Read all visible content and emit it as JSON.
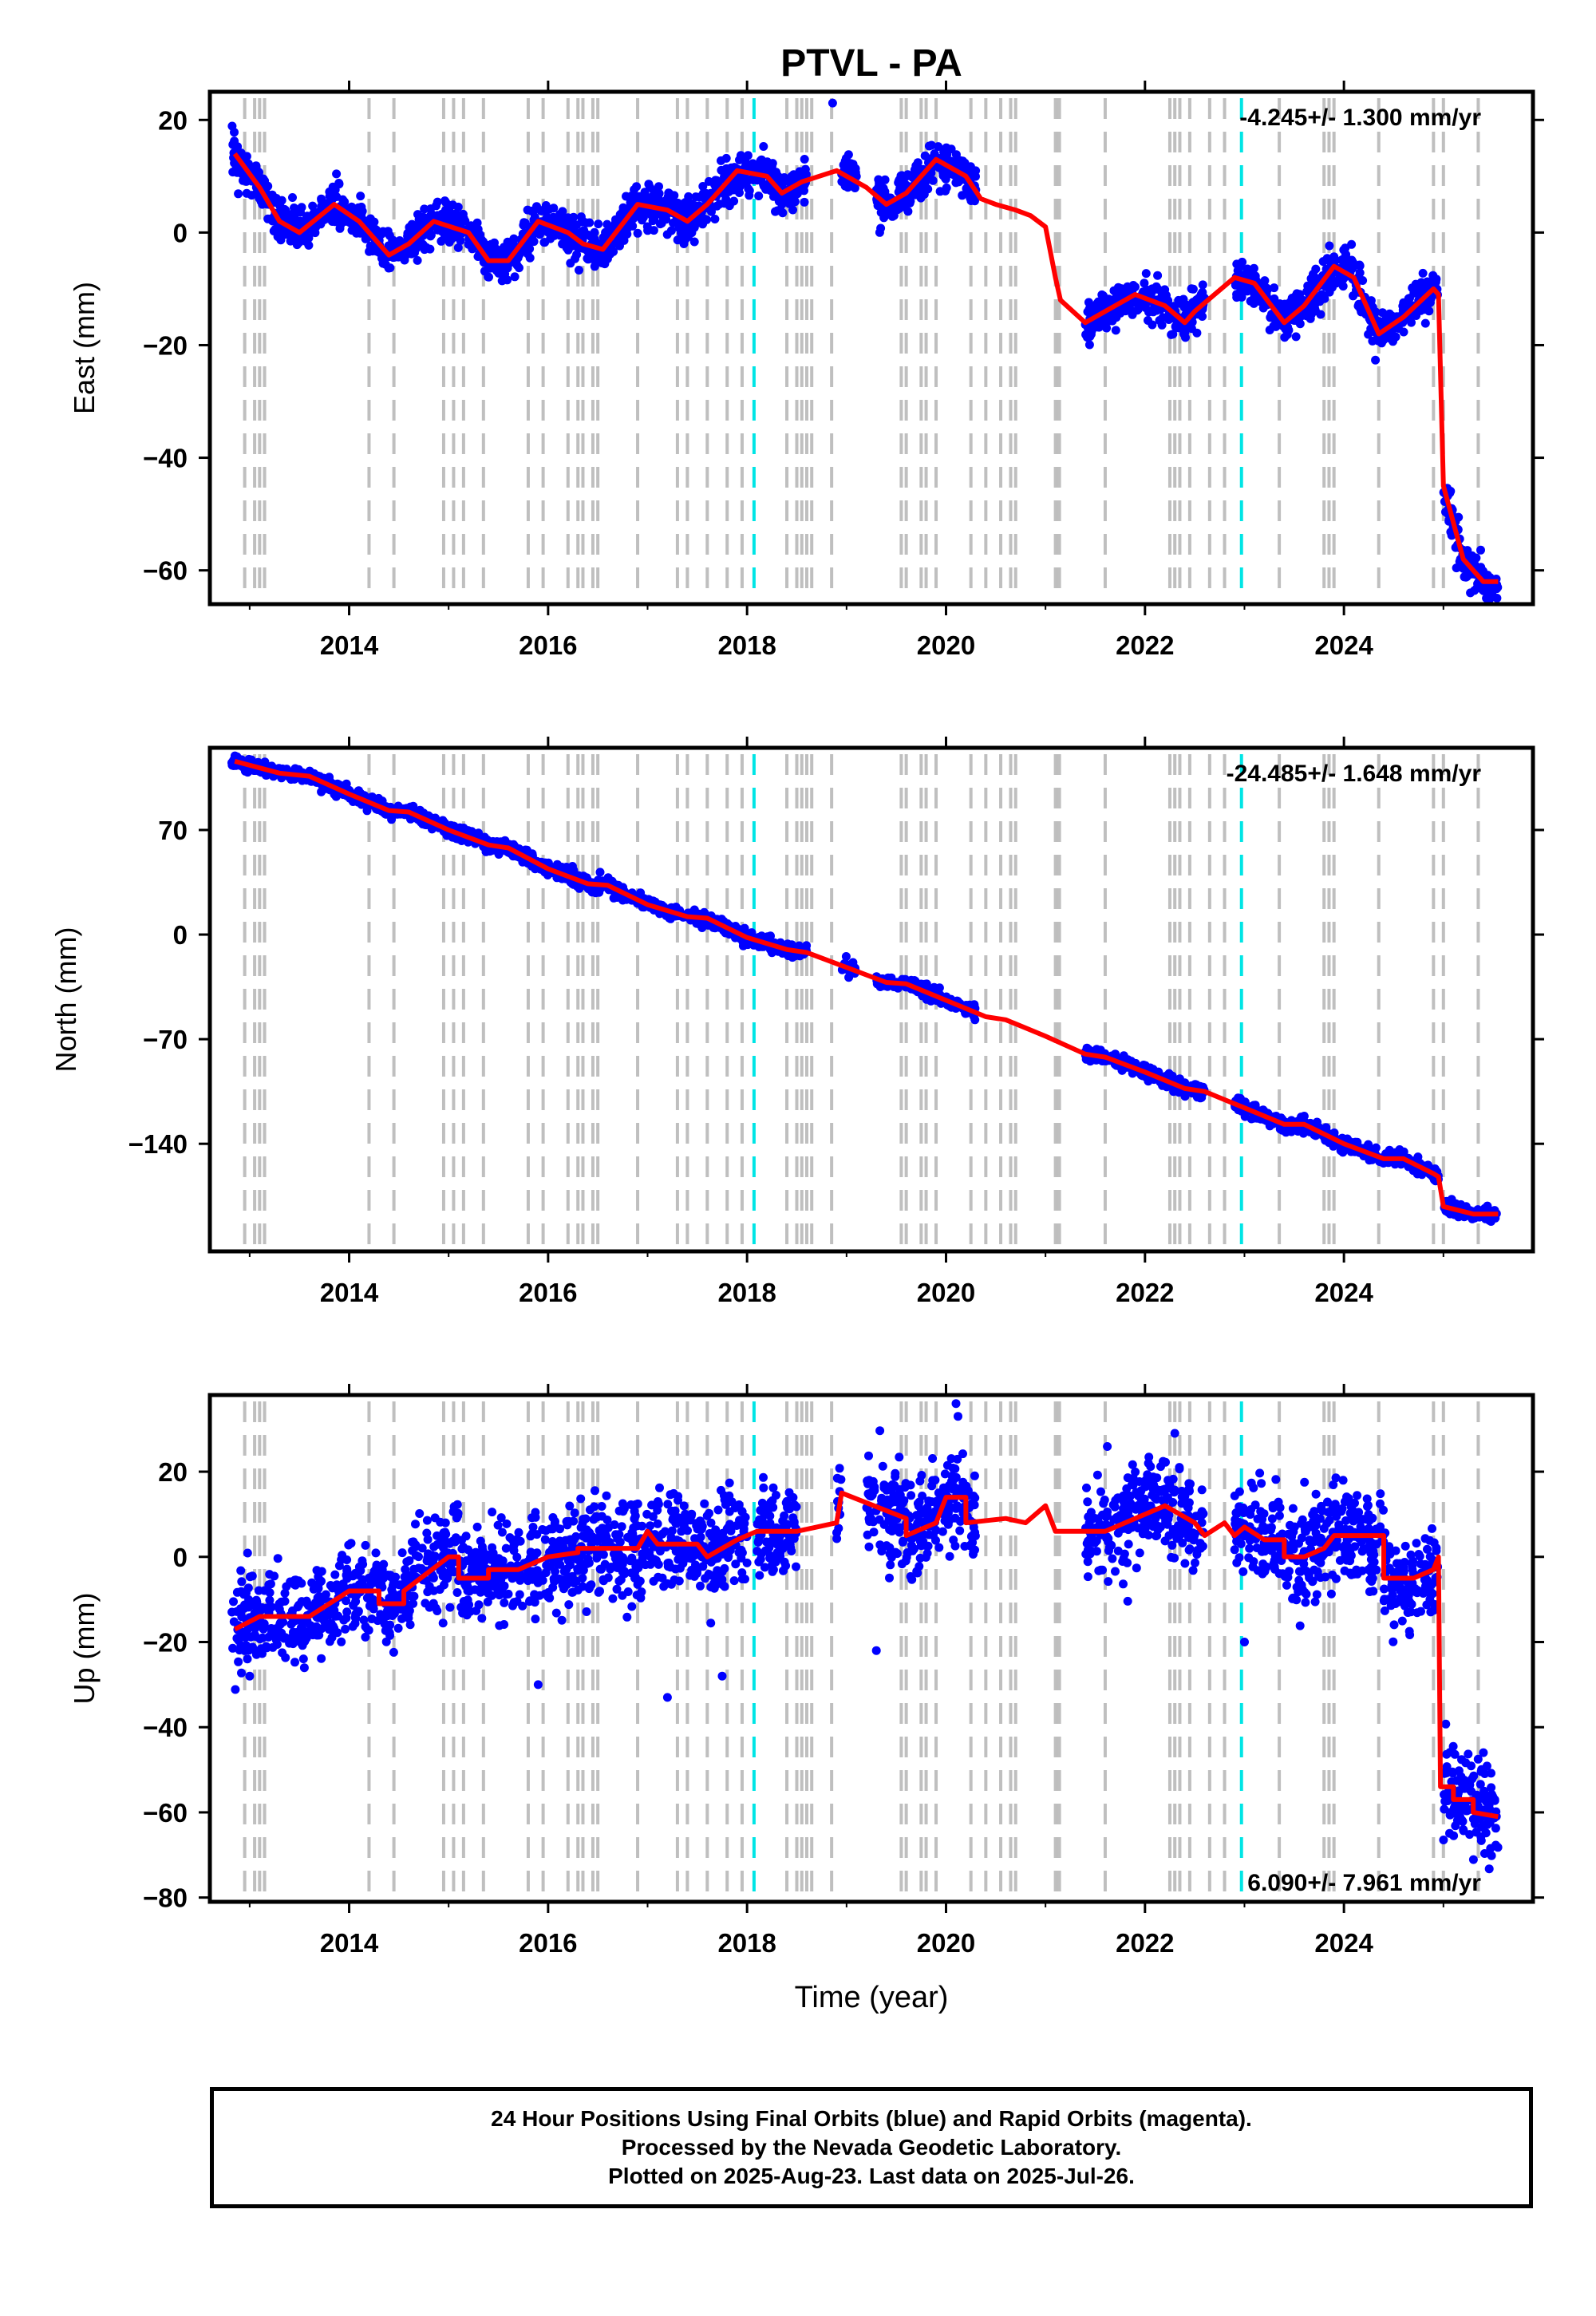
{
  "title": "PTVL - PA",
  "xlabel": "Time (year)",
  "colors": {
    "data": "#0000ff",
    "model": "#ff0000",
    "event_line": "#bfbfbf",
    "special_line": "#00e5e5",
    "frame": "#000000"
  },
  "caption": [
    "24 Hour Positions Using Final Orbits (blue) and Rapid Orbits (magenta).",
    "Processed by the Nevada Geodetic Laboratory.",
    "Plotted on 2025-Aug-23. Last data on 2025-Jul-26."
  ],
  "chart_data": [
    {
      "type": "scatter",
      "ylabel": "East (mm)",
      "rate_label": "-4.245+/- 1.300 mm/yr",
      "rate_position": "top-right",
      "xlim": [
        2012.6,
        2025.9
      ],
      "ylim": [
        -66,
        25
      ],
      "xticks": [
        2014,
        2016,
        2018,
        2020,
        2022,
        2024
      ],
      "yticks": [
        20,
        0,
        -20,
        -40,
        -60
      ],
      "model_series": {
        "name": "model",
        "x": [
          2012.85,
          2013.1,
          2013.3,
          2013.5,
          2013.85,
          2014.1,
          2014.4,
          2014.6,
          2014.85,
          2015.2,
          2015.4,
          2015.6,
          2015.9,
          2016.2,
          2016.35,
          2016.55,
          2016.9,
          2017.2,
          2017.4,
          2017.6,
          2017.9,
          2018.2,
          2018.35,
          2018.55,
          2018.9,
          2019.2,
          2019.4,
          2019.6,
          2019.9,
          2020.2,
          2020.35,
          2020.5,
          2020.7,
          2020.85,
          2021.0,
          2021.1,
          2021.15,
          2021.4,
          2021.6,
          2021.9,
          2022.2,
          2022.4,
          2022.5,
          2022.9,
          2023.1,
          2023.4,
          2023.6,
          2023.9,
          2024.1,
          2024.35,
          2024.6,
          2024.9,
          2024.95,
          2025.0,
          2025.2,
          2025.4,
          2025.55
        ],
        "y": [
          14,
          8,
          2,
          0,
          5,
          2,
          -4,
          -2,
          2,
          0,
          -5,
          -5,
          2,
          0,
          -2,
          -3,
          5,
          4,
          2,
          5,
          11,
          10,
          7,
          9,
          11,
          8,
          5,
          7,
          13,
          10,
          6,
          5,
          4,
          3,
          1,
          -8,
          -12,
          -16,
          -14,
          -11,
          -13,
          -16,
          -14,
          -8,
          -9,
          -16,
          -13,
          -6,
          -8,
          -18,
          -15,
          -10,
          -11,
          -45,
          -58,
          -62,
          -62
        ]
      },
      "observed": {
        "name": "24 hour positions",
        "segments": [
          {
            "x_start": 2012.82,
            "x_end": 2018.6
          },
          {
            "x_start": 2018.95,
            "x_end": 2019.1
          },
          {
            "x_start": 2019.3,
            "x_end": 2020.3
          },
          {
            "x_start": 2021.4,
            "x_end": 2022.6
          },
          {
            "x_start": 2022.9,
            "x_end": 2024.95
          },
          {
            "x_start": 2025.0,
            "x_end": 2025.55
          }
        ],
        "scatter_mm": 1.8,
        "outliers": [
          {
            "x": 2018.86,
            "y": 23
          }
        ]
      }
    },
    {
      "type": "scatter",
      "ylabel": "North (mm)",
      "rate_label": "-24.485+/- 1.648 mm/yr",
      "rate_position": "top-right",
      "xlim": [
        2012.6,
        2025.9
      ],
      "ylim": [
        -212,
        125
      ],
      "xticks": [
        2014,
        2016,
        2018,
        2020,
        2022,
        2024
      ],
      "yticks": [
        70,
        0,
        -70,
        -140
      ],
      "model_series": {
        "name": "model",
        "x": [
          2012.85,
          2013.3,
          2013.6,
          2014.0,
          2014.4,
          2014.6,
          2015.0,
          2015.4,
          2015.6,
          2016.0,
          2016.4,
          2016.6,
          2017.0,
          2017.4,
          2017.6,
          2018.0,
          2018.4,
          2018.6,
          2019.0,
          2019.4,
          2019.6,
          2020.0,
          2020.4,
          2020.6,
          2021.0,
          2021.4,
          2021.6,
          2022.0,
          2022.4,
          2022.6,
          2023.0,
          2023.4,
          2023.6,
          2024.0,
          2024.4,
          2024.6,
          2024.9,
          2024.95,
          2025.0,
          2025.3,
          2025.55
        ],
        "y": [
          116,
          108,
          106,
          94,
          83,
          82,
          70,
          60,
          58,
          44,
          34,
          33,
          20,
          12,
          11,
          -2,
          -10,
          -12,
          -22,
          -32,
          -33,
          -44,
          -55,
          -57,
          -68,
          -80,
          -82,
          -92,
          -103,
          -105,
          -116,
          -127,
          -127,
          -140,
          -150,
          -150,
          -160,
          -162,
          -182,
          -187,
          -187
        ]
      },
      "observed": {
        "name": "24 hour positions",
        "segments": [
          {
            "x_start": 2012.82,
            "x_end": 2018.6
          },
          {
            "x_start": 2018.95,
            "x_end": 2019.1
          },
          {
            "x_start": 2019.3,
            "x_end": 2020.3
          },
          {
            "x_start": 2021.4,
            "x_end": 2022.6
          },
          {
            "x_start": 2022.9,
            "x_end": 2024.95
          },
          {
            "x_start": 2025.0,
            "x_end": 2025.55
          }
        ],
        "scatter_mm": 2.2,
        "outliers": []
      }
    },
    {
      "type": "scatter",
      "ylabel": "Up (mm)",
      "rate_label": "6.090+/- 7.961 mm/yr",
      "rate_position": "bottom-right",
      "xlim": [
        2012.6,
        2025.9
      ],
      "ylim": [
        -81,
        38
      ],
      "xticks": [
        2014,
        2016,
        2018,
        2020,
        2022,
        2024
      ],
      "yticks": [
        20,
        0,
        -20,
        -40,
        -60,
        -80
      ],
      "model_series": {
        "name": "model",
        "x": [
          2012.85,
          2013.1,
          2013.15,
          2013.6,
          2014.0,
          2014.3,
          2014.3,
          2014.55,
          2014.55,
          2015.0,
          2015.1,
          2015.1,
          2015.4,
          2015.4,
          2015.7,
          2016.0,
          2016.3,
          2016.3,
          2016.6,
          2016.9,
          2017.0,
          2017.1,
          2017.5,
          2017.6,
          2017.9,
          2018.1,
          2018.5,
          2018.9,
          2018.95,
          2019.6,
          2019.6,
          2019.9,
          2020.0,
          2020.2,
          2020.2,
          2020.6,
          2020.8,
          2021.0,
          2021.1,
          2021.6,
          2021.9,
          2022.2,
          2022.5,
          2022.6,
          2022.8,
          2022.9,
          2023.0,
          2023.2,
          2023.4,
          2023.4,
          2023.6,
          2023.8,
          2023.9,
          2024.0,
          2024.4,
          2024.4,
          2024.7,
          2024.9,
          2024.95,
          2024.97,
          2025.1,
          2025.1,
          2025.3,
          2025.3,
          2025.55
        ],
        "y": [
          -17,
          -14,
          -14,
          -14,
          -8,
          -8,
          -11,
          -11,
          -8,
          0,
          0,
          -5,
          -5,
          -3,
          -3,
          0,
          1,
          2,
          2,
          2,
          6,
          3,
          3,
          0,
          4,
          6,
          6,
          8,
          15,
          9,
          5,
          8,
          14,
          14,
          8,
          9,
          8,
          12,
          6,
          6,
          9,
          12,
          8,
          5,
          8,
          5,
          7,
          4,
          4,
          0,
          0,
          2,
          5,
          5,
          5,
          -5,
          -5,
          -3,
          0,
          -54,
          -54,
          -57,
          -57,
          -60,
          -61
        ]
      },
      "observed": {
        "name": "24 hour positions",
        "segments": [
          {
            "x_start": 2012.82,
            "x_end": 2018.0
          },
          {
            "x_start": 2018.1,
            "x_end": 2018.5
          },
          {
            "x_start": 2018.9,
            "x_end": 2018.95
          },
          {
            "x_start": 2019.2,
            "x_end": 2020.3
          },
          {
            "x_start": 2021.4,
            "x_end": 2022.6
          },
          {
            "x_start": 2022.9,
            "x_end": 2024.95
          },
          {
            "x_start": 2025.0,
            "x_end": 2025.55
          }
        ],
        "scatter_mm": 5.5,
        "outliers": [
          {
            "x": 2013.0,
            "y": -28
          },
          {
            "x": 2015.9,
            "y": -30
          },
          {
            "x": 2017.2,
            "y": -33
          },
          {
            "x": 2017.75,
            "y": -28
          },
          {
            "x": 2019.3,
            "y": -22
          },
          {
            "x": 2023.0,
            "y": -20
          },
          {
            "x": 2020.1,
            "y": 36
          },
          {
            "x": 2020.12,
            "y": 33
          },
          {
            "x": 2022.3,
            "y": 29
          }
        ]
      }
    }
  ],
  "event_lines": [
    2012.95,
    2013.05,
    2013.1,
    2013.15,
    2014.2,
    2014.45,
    2014.95,
    2015.05,
    2015.15,
    2015.35,
    2015.8,
    2015.95,
    2016.2,
    2016.3,
    2016.35,
    2016.45,
    2016.5,
    2016.9,
    2017.3,
    2017.4,
    2017.6,
    2017.8,
    2017.95,
    2018.4,
    2018.5,
    2018.55,
    2018.6,
    2018.65,
    2018.85,
    2019.55,
    2019.6,
    2019.75,
    2019.8,
    2019.9,
    2020.25,
    2020.4,
    2020.55,
    2020.65,
    2020.7,
    2021.1,
    2021.12,
    2021.14,
    2021.6,
    2022.25,
    2022.3,
    2022.35,
    2022.45,
    2022.65,
    2022.8,
    2023.35,
    2023.8,
    2023.85,
    2023.9,
    2024.35,
    2024.9,
    2025.0,
    2025.35
  ],
  "special_lines": [
    2018.07,
    2022.97
  ]
}
